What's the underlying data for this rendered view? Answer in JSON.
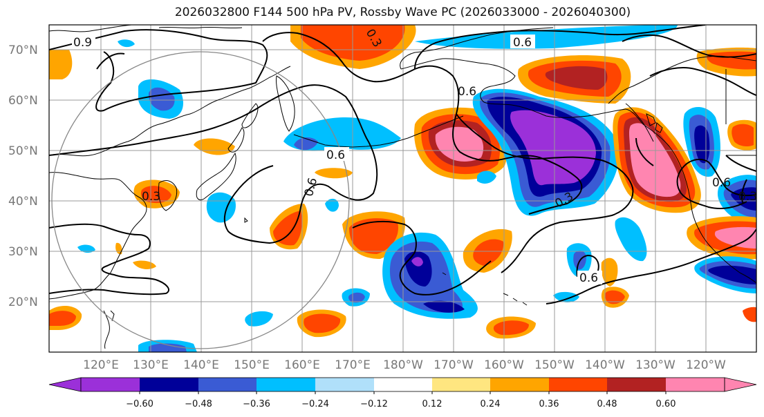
{
  "title": "2026032800 F144 500 hPa PV, Rossby Wave PC (2026033000 - 2026040300)",
  "lat_labels": [
    "70°N",
    "60°N",
    "50°N",
    "40°N",
    "30°N",
    "20°N"
  ],
  "lon_labels": [
    "120°E",
    "130°E",
    "140°E",
    "150°E",
    "160°E",
    "170°E",
    "180°W",
    "170°W",
    "160°W",
    "150°W",
    "140°W",
    "130°W",
    "120°W"
  ],
  "contour_labels": [
    "0.9",
    "0.3",
    "0.6",
    "0.6",
    "0.6",
    "0.6",
    "0.3",
    "0.6",
    "0.3",
    "0.6",
    "0.3"
  ],
  "colorbar": {
    "ticks": [
      "−0.60",
      "−0.48",
      "−0.36",
      "−0.24",
      "−0.12",
      "0.12",
      "0.24",
      "0.36",
      "0.48",
      "0.60"
    ],
    "colors": {
      "under": "#9b30d9",
      "bins": [
        "#9b30d9",
        "#000099",
        "#3a5bd4",
        "#00bfff",
        "#b0e0fa",
        "#ffffff",
        "#ffe680",
        "#ffa500",
        "#ff4500",
        "#b22222",
        "#ff85b0"
      ],
      "over": "#ff85b0"
    }
  }
}
